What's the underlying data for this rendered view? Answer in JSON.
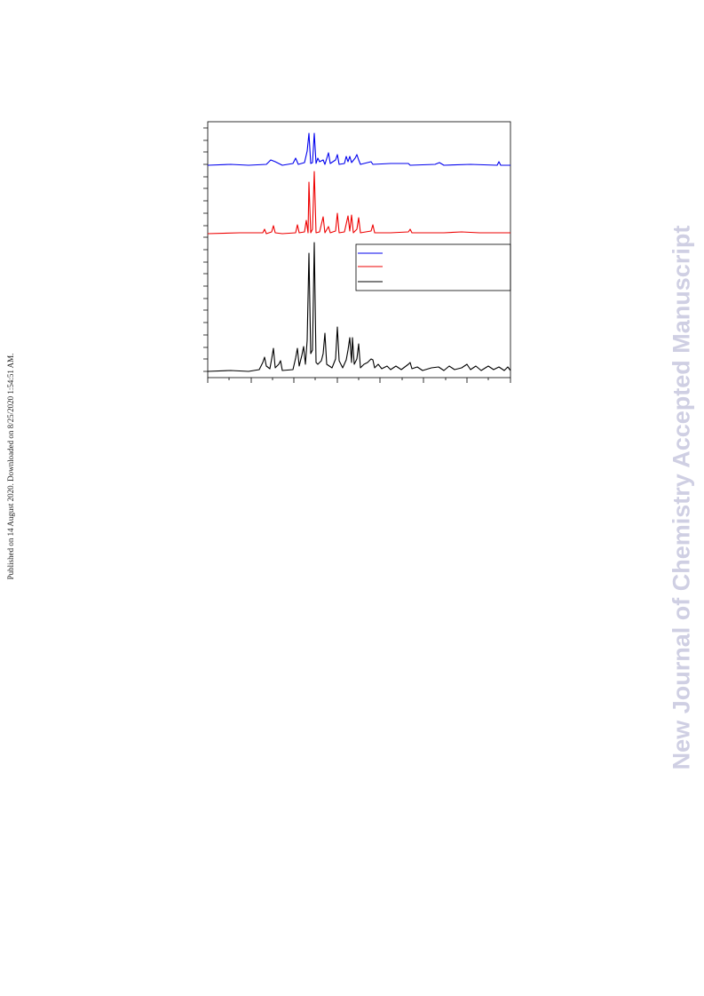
{
  "sidebar": {
    "published": "Published on 14 August 2020. Downloaded on 8/25/2020 1:54:51 AM."
  },
  "watermark": "New Journal of Chemistry Accepted Manuscript"
}
